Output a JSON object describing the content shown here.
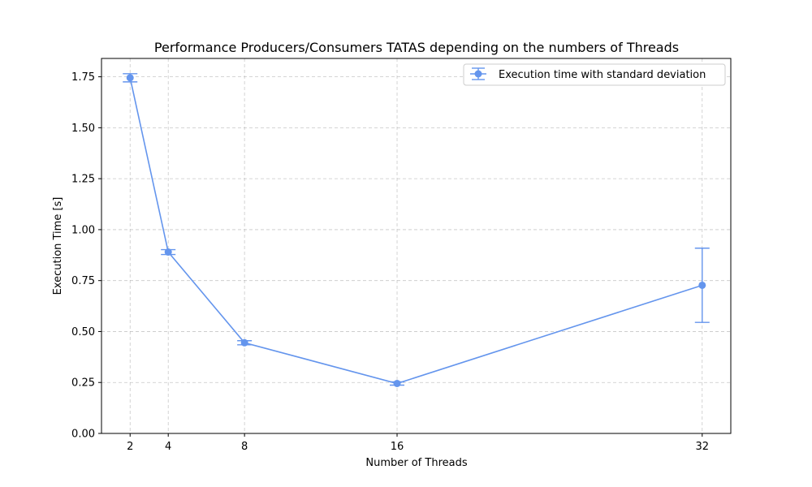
{
  "chart_data": {
    "type": "line",
    "title": "Performance Producers/Consumers TATAS depending on the numbers of Threads",
    "xlabel": "Number of Threads",
    "ylabel": "Execution Time [s]",
    "x": [
      2,
      4,
      8,
      16,
      32
    ],
    "xticks": [
      "2",
      "4",
      "8",
      "16",
      "32"
    ],
    "yticks": [
      "0.00",
      "0.25",
      "0.50",
      "0.75",
      "1.00",
      "1.25",
      "1.50",
      "1.75"
    ],
    "ytick_values": [
      0,
      0.25,
      0.5,
      0.75,
      1.0,
      1.25,
      1.5,
      1.75
    ],
    "xlim": [
      0.5,
      33.5
    ],
    "ylim": [
      0,
      1.84
    ],
    "grid": true,
    "legend_position": "top-right",
    "series": [
      {
        "name": "Execution time with standard deviation",
        "color": "#6495ED",
        "values": [
          1.745,
          0.89,
          0.445,
          0.245,
          0.727
        ],
        "errors": [
          0.02,
          0.012,
          0.01,
          0.008,
          0.182
        ]
      }
    ]
  }
}
